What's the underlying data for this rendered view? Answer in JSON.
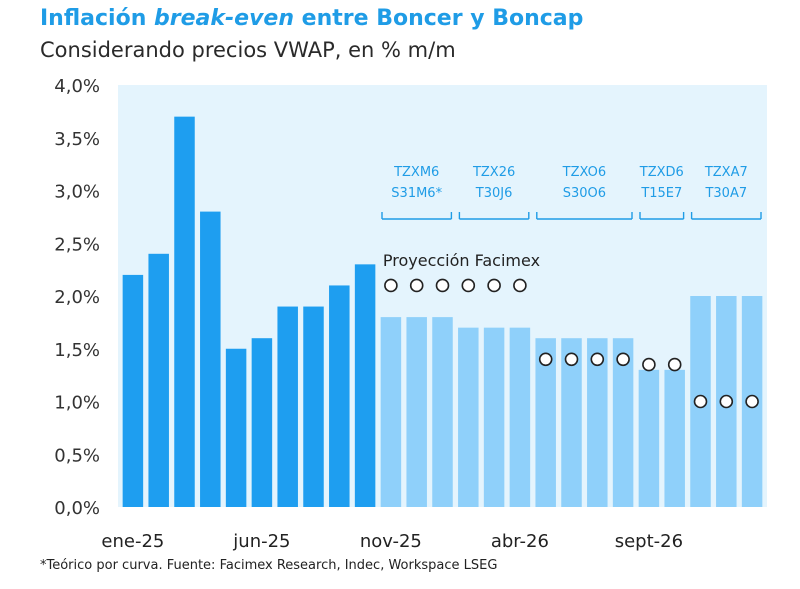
{
  "title": {
    "part1": "Inflación ",
    "part2": "break-even",
    "part3": " entre Boncer y Boncap"
  },
  "subtitle": "Considerando precios VWAP, en % m/m",
  "footnote": "*Teórico por curva. Fuente: Facimex Research, Indec, Workspace LSEG",
  "colors": {
    "title": "#1f9ce6",
    "actual_bar": "#1e9ef0",
    "projected_bar": "#8fd0fa",
    "projection_bg": "#e4f4fd",
    "bond_label": "#1f9ce6",
    "marker_fill": "#ffffff",
    "marker_stroke": "#222222"
  },
  "chart_data": {
    "type": "bar",
    "title": "Inflación break-even entre Boncer y Boncap",
    "subtitle": "Considerando precios VWAP, en % m/m",
    "ylim": [
      0,
      4
    ],
    "yticks": [
      0,
      0.5,
      1,
      1.5,
      2,
      2.5,
      3,
      3.5,
      4
    ],
    "ytick_labels": [
      "0,0%",
      "0,5%",
      "1,0%",
      "1,5%",
      "2,0%",
      "2,5%",
      "3,0%",
      "3,5%",
      "4,0%"
    ],
    "xtick_labels": [
      {
        "index": 0,
        "label": "ene-25"
      },
      {
        "index": 5,
        "label": "jun-25"
      },
      {
        "index": 10,
        "label": "nov-25"
      },
      {
        "index": 15,
        "label": "abr-26"
      },
      {
        "index": 20,
        "label": "sept-26"
      }
    ],
    "bars": [
      {
        "period": "ene-25",
        "value": 2.2,
        "kind": "actual"
      },
      {
        "period": "feb-25",
        "value": 2.4,
        "kind": "actual"
      },
      {
        "period": "mar-25",
        "value": 3.7,
        "kind": "actual"
      },
      {
        "period": "abr-25",
        "value": 2.8,
        "kind": "actual"
      },
      {
        "period": "may-25",
        "value": 1.5,
        "kind": "actual"
      },
      {
        "period": "jun-25",
        "value": 1.6,
        "kind": "actual"
      },
      {
        "period": "jul-25",
        "value": 1.9,
        "kind": "actual"
      },
      {
        "period": "ago-25",
        "value": 1.9,
        "kind": "actual"
      },
      {
        "period": "sep-25",
        "value": 2.1,
        "kind": "actual"
      },
      {
        "period": "oct-25",
        "value": 2.3,
        "kind": "actual"
      },
      {
        "period": "nov-25",
        "value": 1.8,
        "kind": "projected"
      },
      {
        "period": "dic-25",
        "value": 1.8,
        "kind": "projected"
      },
      {
        "period": "ene-26",
        "value": 1.8,
        "kind": "projected"
      },
      {
        "period": "feb-26",
        "value": 1.7,
        "kind": "projected"
      },
      {
        "period": "mar-26",
        "value": 1.7,
        "kind": "projected"
      },
      {
        "period": "abr-26",
        "value": 1.7,
        "kind": "projected"
      },
      {
        "period": "may-26",
        "value": 1.6,
        "kind": "projected"
      },
      {
        "period": "jun-26",
        "value": 1.6,
        "kind": "projected"
      },
      {
        "period": "jul-26",
        "value": 1.6,
        "kind": "projected"
      },
      {
        "period": "ago-26",
        "value": 1.6,
        "kind": "projected"
      },
      {
        "period": "sept-26",
        "value": 1.3,
        "kind": "projected"
      },
      {
        "period": "oct-26",
        "value": 1.3,
        "kind": "projected"
      },
      {
        "period": "nov-26",
        "value": 2.0,
        "kind": "projected"
      },
      {
        "period": "dic-26",
        "value": 2.0,
        "kind": "projected"
      },
      {
        "period": "ene-27",
        "value": 2.0,
        "kind": "projected"
      }
    ],
    "projection_series": {
      "name": "Proyección Facimex",
      "points": [
        {
          "index": 10,
          "value": 2.1
        },
        {
          "index": 11,
          "value": 2.1
        },
        {
          "index": 12,
          "value": 2.1
        },
        {
          "index": 13,
          "value": 2.1
        },
        {
          "index": 14,
          "value": 2.1
        },
        {
          "index": 15,
          "value": 2.1
        },
        {
          "index": 16,
          "value": 1.4
        },
        {
          "index": 17,
          "value": 1.4
        },
        {
          "index": 18,
          "value": 1.4
        },
        {
          "index": 19,
          "value": 1.4
        },
        {
          "index": 20,
          "value": 1.35
        },
        {
          "index": 21,
          "value": 1.35
        },
        {
          "index": 22,
          "value": 1.0
        },
        {
          "index": 23,
          "value": 1.0
        },
        {
          "index": 24,
          "value": 1.0
        }
      ]
    },
    "bond_groups": [
      {
        "line1": "TZXM6",
        "line2": "S31M6*",
        "start": 10,
        "end": 12
      },
      {
        "line1": "TZX26",
        "line2": "T30J6",
        "start": 13,
        "end": 15
      },
      {
        "line1": "TZXO6",
        "line2": "S30O6",
        "start": 16,
        "end": 19
      },
      {
        "line1": "TZXD6",
        "line2": "T15E7",
        "start": 20,
        "end": 21
      },
      {
        "line1": "TZXA7",
        "line2": "T30A7",
        "start": 22,
        "end": 24
      }
    ]
  }
}
